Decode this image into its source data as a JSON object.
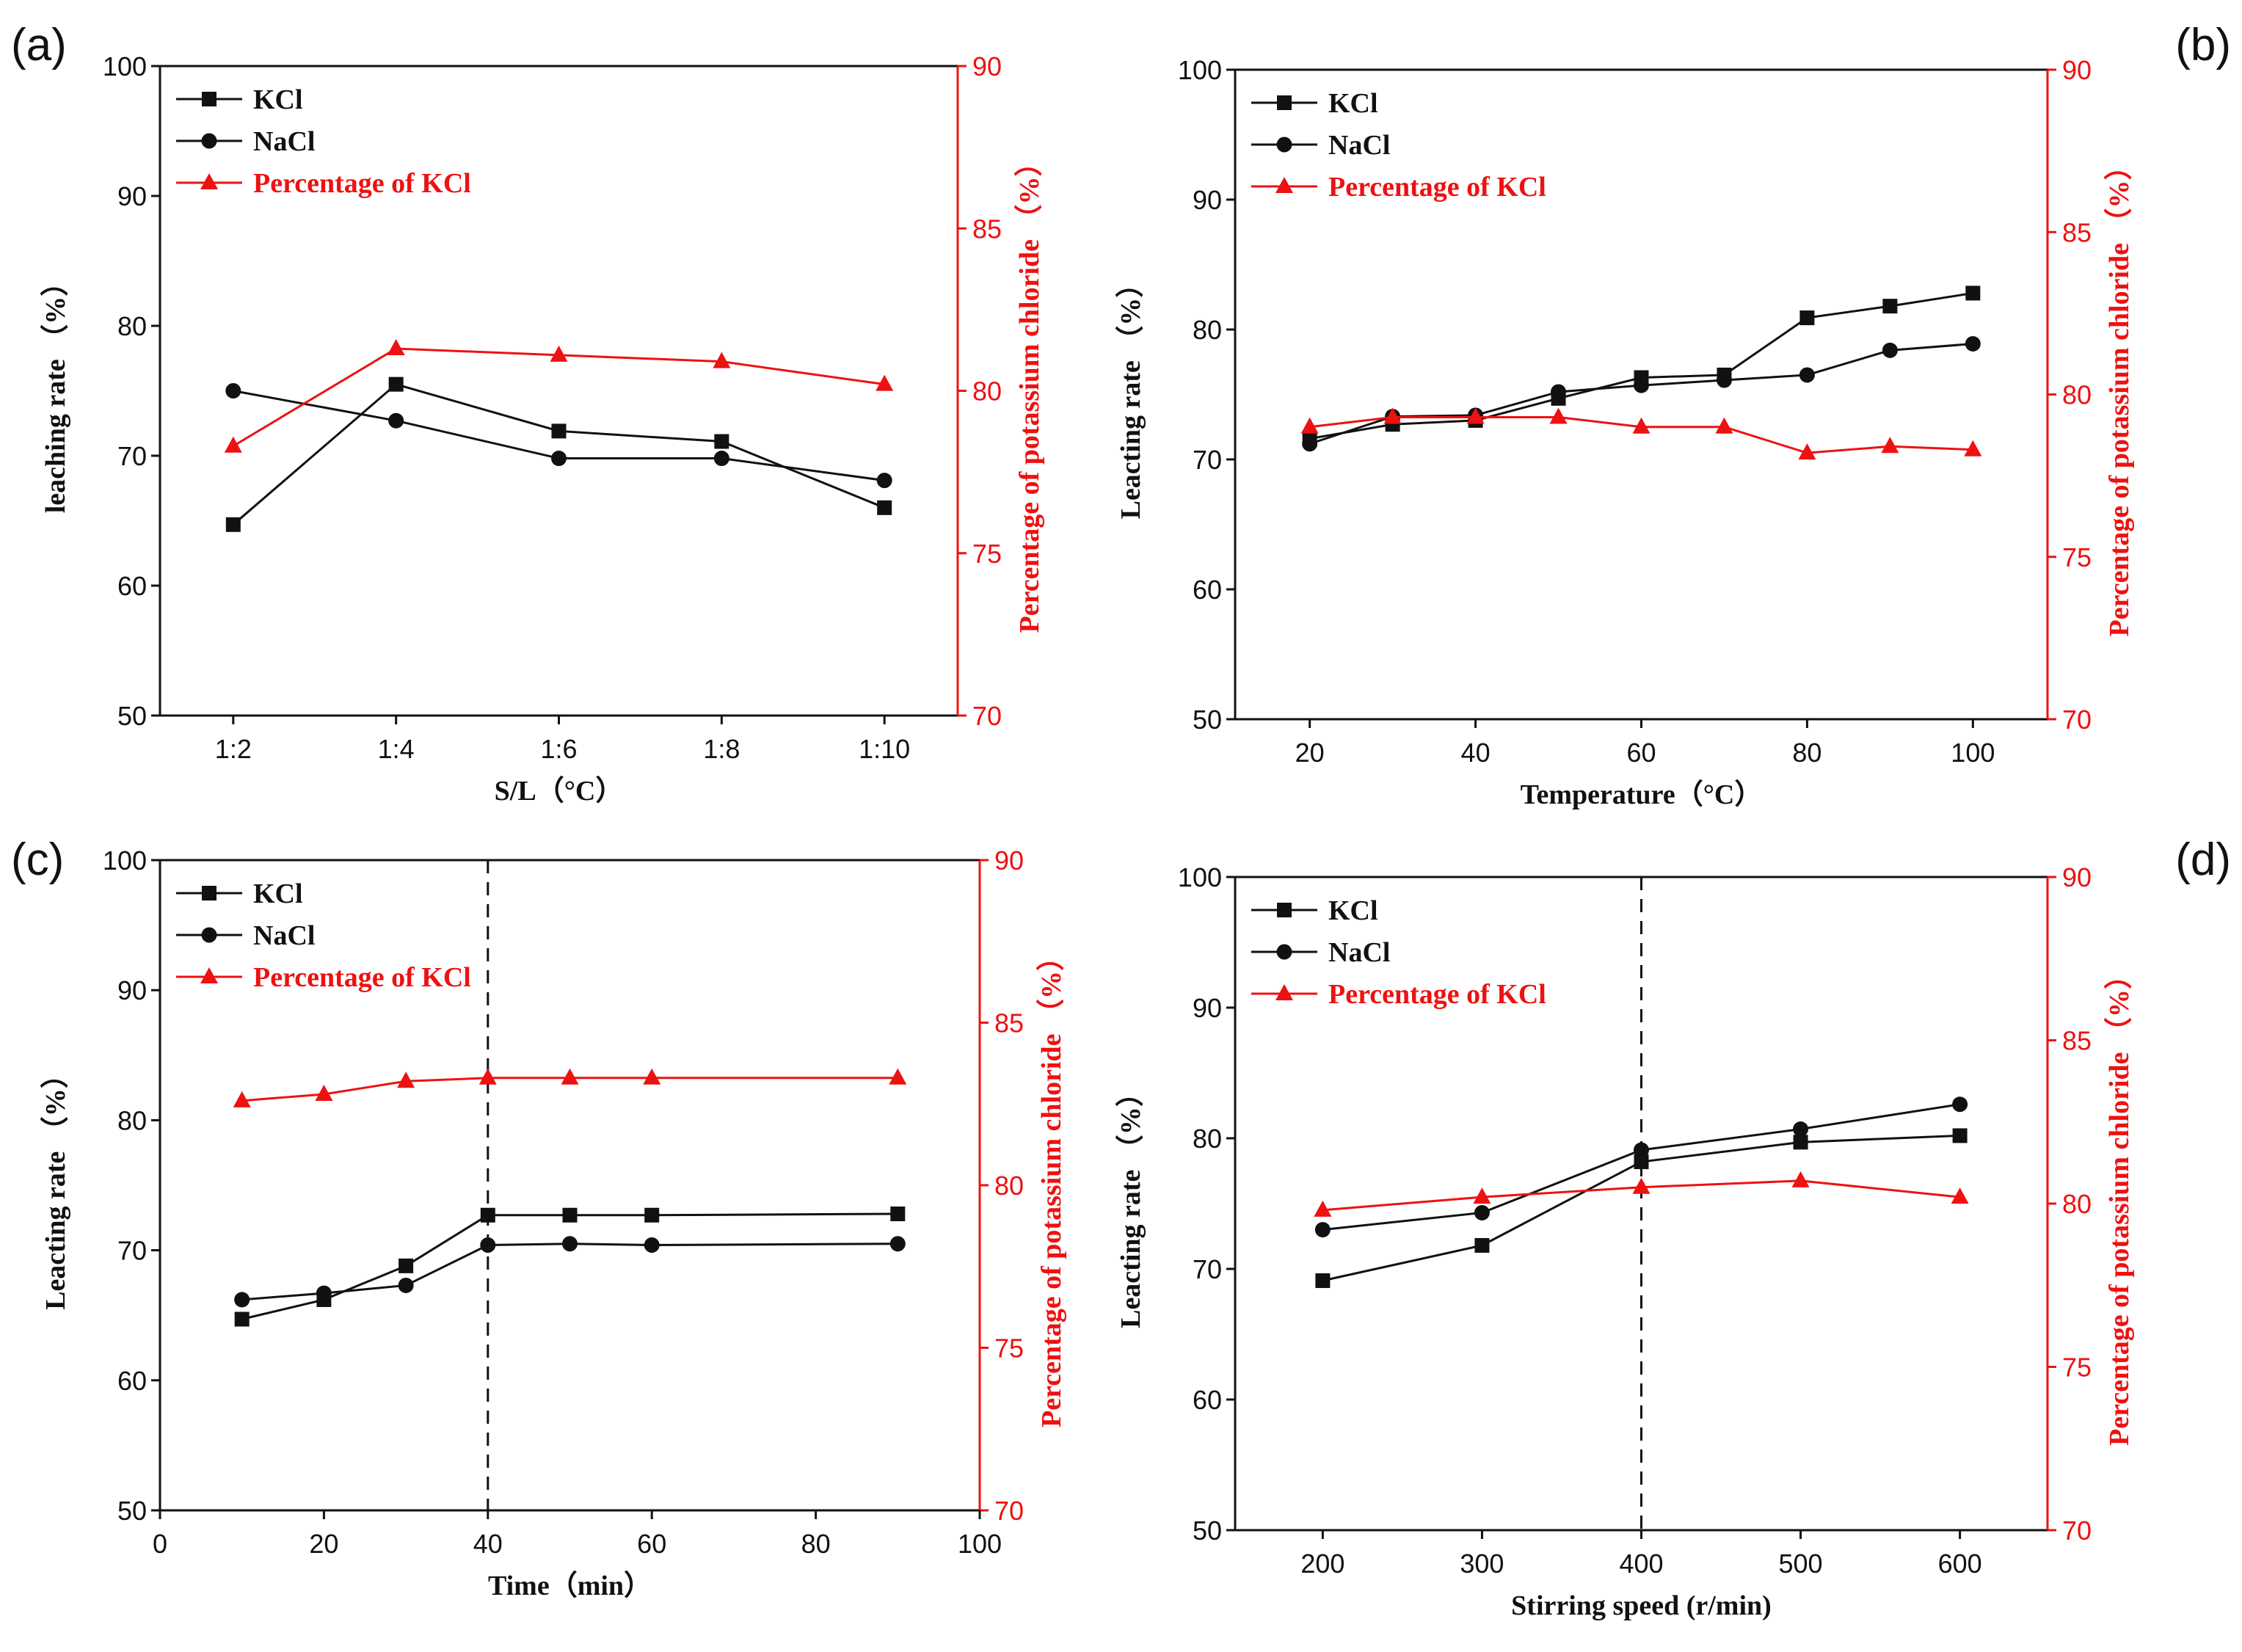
{
  "colors": {
    "black": "#111111",
    "red": "#ee1111"
  },
  "chart_data": [
    {
      "type": "line",
      "panel_label": "(a)",
      "xlabel": "S/L（°C）",
      "ylabel": "leaching rate （%）",
      "y2label": "Percentage of potassium chloride （%）",
      "x_scale": "category",
      "categories": [
        "1:2",
        "1:4",
        "1:6",
        "1:8",
        "1:10"
      ],
      "xticks": [
        "1:2",
        "1:4",
        "1:6",
        "1:8",
        "1:10"
      ],
      "xticks_at": [
        0,
        1,
        2,
        3,
        4
      ],
      "xlim": [
        -0.45,
        4.45
      ],
      "ylim": [
        50,
        100
      ],
      "yticks": [
        50,
        60,
        70,
        80,
        90,
        100
      ],
      "y2lim": [
        70,
        90
      ],
      "y2ticks": [
        70,
        75,
        80,
        85,
        90
      ],
      "dashed_vline_at": null,
      "legend": [
        "KCl",
        "NaCl",
        "Percentage of KCl"
      ],
      "series": [
        {
          "name": "KCl",
          "axis": "left",
          "marker": "square",
          "color": "#111111",
          "x": [
            0,
            1,
            2,
            3,
            4
          ],
          "values": [
            64.7,
            75.5,
            71.9,
            71.1,
            66.0
          ]
        },
        {
          "name": "NaCl",
          "axis": "left",
          "marker": "circle",
          "color": "#111111",
          "x": [
            0,
            1,
            2,
            3,
            4
          ],
          "values": [
            75.0,
            72.7,
            69.8,
            69.8,
            68.1
          ]
        },
        {
          "name": "Percentage of KCl",
          "axis": "right",
          "marker": "triangle",
          "color": "#ee1111",
          "x": [
            0,
            1,
            2,
            3,
            4
          ],
          "values": [
            78.3,
            81.3,
            81.1,
            80.9,
            80.2
          ]
        }
      ]
    },
    {
      "type": "line",
      "panel_label": "(b)",
      "xlabel": "Temperature（°C）",
      "ylabel": "Leacting rate （%）",
      "y2label": "Percentage of potassium chloride （%）",
      "x_scale": "linear",
      "xticks": [
        "20",
        "40",
        "60",
        "80",
        "100"
      ],
      "xticks_at": [
        20,
        40,
        60,
        80,
        100
      ],
      "xlim": [
        11,
        109
      ],
      "ylim": [
        50,
        100
      ],
      "yticks": [
        50,
        60,
        70,
        80,
        90,
        100
      ],
      "y2lim": [
        70,
        90
      ],
      "y2ticks": [
        70,
        75,
        80,
        85,
        90
      ],
      "dashed_vline_at": null,
      "legend": [
        "KCl",
        "NaCl",
        "Percentage of KCl"
      ],
      "series": [
        {
          "name": "KCl",
          "axis": "left",
          "marker": "square",
          "color": "#111111",
          "x": [
            20,
            30,
            40,
            50,
            60,
            70,
            80,
            90,
            100
          ],
          "values": [
            71.6,
            72.7,
            73.0,
            74.7,
            76.3,
            76.5,
            80.9,
            81.8,
            82.8
          ]
        },
        {
          "name": "NaCl",
          "axis": "left",
          "marker": "circle",
          "color": "#111111",
          "x": [
            20,
            30,
            40,
            50,
            60,
            70,
            80,
            90,
            100
          ],
          "values": [
            71.2,
            73.3,
            73.4,
            75.2,
            75.7,
            76.1,
            76.5,
            78.4,
            78.9
          ]
        },
        {
          "name": "Percentage of KCl",
          "axis": "right",
          "marker": "triangle",
          "color": "#ee1111",
          "x": [
            20,
            30,
            40,
            50,
            60,
            70,
            80,
            90,
            100
          ],
          "values": [
            79.0,
            79.3,
            79.3,
            79.3,
            79.0,
            79.0,
            78.2,
            78.4,
            78.3
          ]
        }
      ]
    },
    {
      "type": "line",
      "panel_label": "(c)",
      "xlabel": "Time（min）",
      "ylabel": "Leacting rate （%）",
      "y2label": "Percentage of potassium chloride （%）",
      "x_scale": "linear",
      "xticks": [
        "0",
        "20",
        "40",
        "60",
        "80",
        "100"
      ],
      "xticks_at": [
        0,
        20,
        40,
        60,
        80,
        100
      ],
      "xlim": [
        0,
        100
      ],
      "ylim": [
        50,
        100
      ],
      "yticks": [
        50,
        60,
        70,
        80,
        90,
        100
      ],
      "y2lim": [
        70,
        90
      ],
      "y2ticks": [
        70,
        75,
        80,
        85,
        90
      ],
      "dashed_vline_at": 40,
      "legend": [
        "KCl",
        "NaCl",
        "Percentage of KCl"
      ],
      "series": [
        {
          "name": "KCl",
          "axis": "left",
          "marker": "square",
          "color": "#111111",
          "x": [
            10,
            20,
            30,
            40,
            50,
            60,
            90
          ],
          "values": [
            64.7,
            66.2,
            68.8,
            72.7,
            72.7,
            72.7,
            72.8
          ]
        },
        {
          "name": "NaCl",
          "axis": "left",
          "marker": "circle",
          "color": "#111111",
          "x": [
            10,
            20,
            30,
            40,
            50,
            60,
            90
          ],
          "values": [
            66.2,
            66.7,
            67.3,
            70.4,
            70.5,
            70.4,
            70.5
          ]
        },
        {
          "name": "Percentage of KCl",
          "axis": "right",
          "marker": "triangle",
          "color": "#ee1111",
          "x": [
            10,
            20,
            30,
            40,
            50,
            60,
            90
          ],
          "values": [
            82.6,
            82.8,
            83.2,
            83.3,
            83.3,
            83.3,
            83.3
          ]
        }
      ]
    },
    {
      "type": "line",
      "panel_label": "(d)",
      "xlabel": "Stirring speed (r/min)",
      "ylabel": "Leacting rate （%）",
      "y2label": "Percentage of potassium chloride （%）",
      "x_scale": "linear",
      "xticks": [
        "200",
        "300",
        "400",
        "500",
        "600"
      ],
      "xticks_at": [
        200,
        300,
        400,
        500,
        600
      ],
      "xlim": [
        145,
        655
      ],
      "ylim": [
        50,
        100
      ],
      "yticks": [
        50,
        60,
        70,
        80,
        90,
        100
      ],
      "y2lim": [
        70,
        90
      ],
      "y2ticks": [
        70,
        75,
        80,
        85,
        90
      ],
      "dashed_vline_at": 400,
      "legend": [
        "KCl",
        "NaCl",
        "Percentage of KCl"
      ],
      "series": [
        {
          "name": "KCl",
          "axis": "left",
          "marker": "square",
          "color": "#111111",
          "x": [
            200,
            300,
            400,
            500,
            600
          ],
          "values": [
            69.1,
            71.8,
            78.2,
            79.7,
            80.2
          ]
        },
        {
          "name": "NaCl",
          "axis": "left",
          "marker": "circle",
          "color": "#111111",
          "x": [
            200,
            300,
            400,
            500,
            600
          ],
          "values": [
            73.0,
            74.3,
            79.1,
            80.7,
            82.6
          ]
        },
        {
          "name": "Percentage of KCl",
          "axis": "right",
          "marker": "triangle",
          "color": "#ee1111",
          "x": [
            200,
            300,
            400,
            500,
            600
          ],
          "values": [
            79.8,
            80.2,
            80.5,
            80.7,
            80.2
          ]
        }
      ]
    }
  ]
}
